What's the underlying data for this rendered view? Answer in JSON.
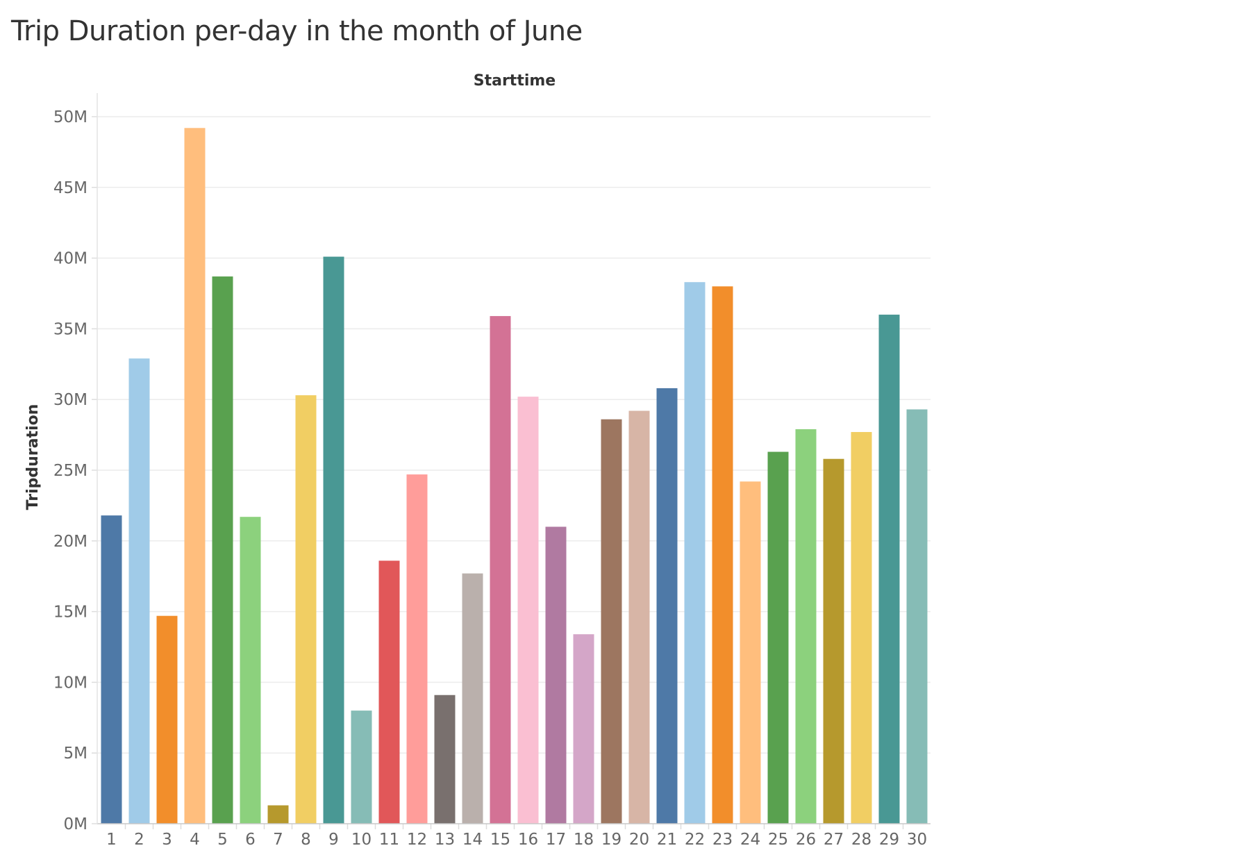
{
  "chart_data": {
    "type": "bar",
    "title": "Trip Duration per-day in the month of June",
    "xlabel": "Starttime",
    "ylabel": "Tripduration",
    "categories": [
      "1",
      "2",
      "3",
      "4",
      "5",
      "6",
      "7",
      "8",
      "9",
      "10",
      "11",
      "12",
      "13",
      "14",
      "15",
      "16",
      "17",
      "18",
      "19",
      "20",
      "21",
      "22",
      "23",
      "24",
      "25",
      "26",
      "27",
      "28",
      "29",
      "30"
    ],
    "values": [
      21.8,
      32.9,
      14.7,
      49.2,
      38.7,
      21.7,
      1.3,
      30.3,
      40.1,
      8.0,
      18.6,
      24.7,
      9.1,
      17.7,
      35.9,
      30.2,
      21.0,
      13.4,
      28.6,
      29.2,
      30.8,
      38.3,
      38.0,
      24.2,
      26.3,
      27.9,
      25.8,
      27.7,
      36.0,
      29.3
    ],
    "value_unit": "M",
    "ylim": [
      0,
      50
    ],
    "yticks": [
      0,
      5,
      10,
      15,
      20,
      25,
      30,
      35,
      40,
      45,
      50
    ],
    "ytick_labels": [
      "0M",
      "5M",
      "10M",
      "15M",
      "20M",
      "25M",
      "30M",
      "35M",
      "40M",
      "45M",
      "50M"
    ],
    "grid": true,
    "legend": "none",
    "colors": [
      "#4e79a7",
      "#a0cbe8",
      "#f28e2b",
      "#ffbe7d",
      "#59a14f",
      "#8cd17d",
      "#b6992d",
      "#f1ce63",
      "#499894",
      "#86bcb6",
      "#e15759",
      "#ff9d9a",
      "#79706e",
      "#bab0ac",
      "#d37295",
      "#fabfd2",
      "#b07aa1",
      "#d4a6c8",
      "#9d7660",
      "#d7b5a6"
    ]
  }
}
